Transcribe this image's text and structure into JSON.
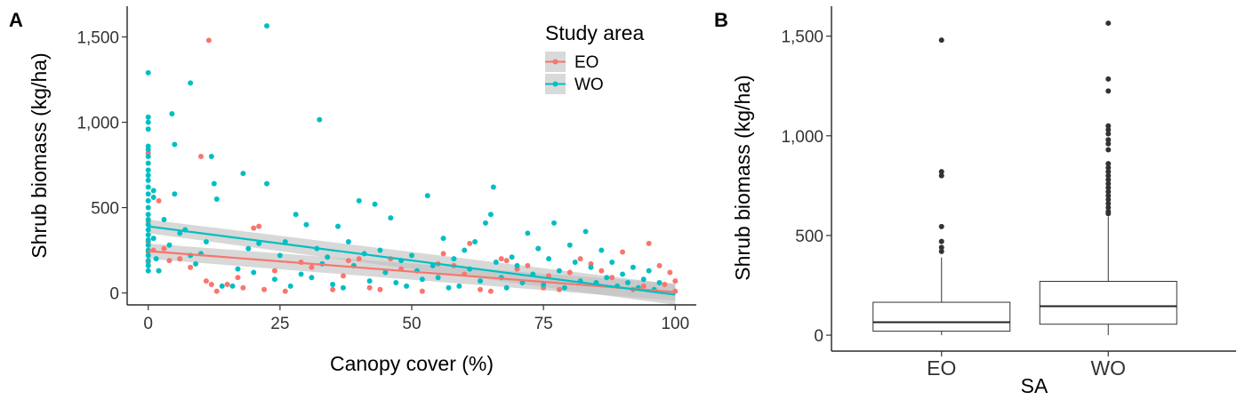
{
  "chart_data": [
    {
      "type": "scatter",
      "panel_label": "A",
      "xlabel": "Canopy cover (%)",
      "ylabel": "Shrub biomass (kg/ha)",
      "xlim": [
        -4,
        104
      ],
      "ylim": [
        -70,
        1680
      ],
      "xticks": [
        0,
        25,
        50,
        75,
        100
      ],
      "xtick_labels": [
        "0",
        "25",
        "50",
        "75",
        "100"
      ],
      "yticks": [
        0,
        500,
        1000,
        1500
      ],
      "ytick_labels": [
        "0",
        "500",
        "1,000",
        "1,500"
      ],
      "grid": false,
      "legend": {
        "title": "Study area",
        "position": "top-right"
      },
      "series": [
        {
          "name": "EO",
          "color": "#F8766D",
          "fit": {
            "x": [
              0,
              100
            ],
            "y": [
              245,
              5
            ],
            "band_halfwidth": [
              45,
              50
            ]
          },
          "points": [
            [
              0,
              240
            ],
            [
              0,
              180
            ],
            [
              0,
              300
            ],
            [
              0,
              420
            ],
            [
              0,
              820
            ],
            [
              1,
              250
            ],
            [
              2,
              130
            ],
            [
              2,
              540
            ],
            [
              3,
              260
            ],
            [
              4,
              190
            ],
            [
              6,
              200
            ],
            [
              8,
              150
            ],
            [
              10,
              800
            ],
            [
              11,
              70
            ],
            [
              11.5,
              1480
            ],
            [
              12,
              50
            ],
            [
              13,
              10
            ],
            [
              15,
              50
            ],
            [
              17,
              90
            ],
            [
              18,
              30
            ],
            [
              20,
              380
            ],
            [
              21,
              390
            ],
            [
              22,
              20
            ],
            [
              24,
              130
            ],
            [
              26,
              10
            ],
            [
              29,
              180
            ],
            [
              31,
              150
            ],
            [
              35,
              20
            ],
            [
              37,
              100
            ],
            [
              38,
              190
            ],
            [
              40,
              200
            ],
            [
              42,
              30
            ],
            [
              44,
              20
            ],
            [
              46,
              200
            ],
            [
              48,
              140
            ],
            [
              52,
              10
            ],
            [
              55,
              170
            ],
            [
              56,
              230
            ],
            [
              58,
              160
            ],
            [
              60,
              110
            ],
            [
              61,
              290
            ],
            [
              63,
              20
            ],
            [
              65,
              10
            ],
            [
              67,
              200
            ],
            [
              68,
              190
            ],
            [
              70,
              140
            ],
            [
              72,
              160
            ],
            [
              74,
              260
            ],
            [
              75,
              30
            ],
            [
              76,
              100
            ],
            [
              78,
              20
            ],
            [
              80,
              120
            ],
            [
              82,
              200
            ],
            [
              84,
              170
            ],
            [
              86,
              130
            ],
            [
              88,
              90
            ],
            [
              90,
              240
            ],
            [
              92,
              20
            ],
            [
              94,
              40
            ],
            [
              95,
              290
            ],
            [
              97,
              160
            ],
            [
              98,
              50
            ],
            [
              99,
              120
            ],
            [
              100,
              10
            ],
            [
              100,
              70
            ]
          ]
        },
        {
          "name": "WO",
          "color": "#00BFC4",
          "fit": {
            "x": [
              0,
              100
            ],
            "y": [
              390,
              -10
            ],
            "band_halfwidth": [
              40,
              60
            ]
          },
          "points": [
            [
              0,
              1290
            ],
            [
              0,
              1030
            ],
            [
              0,
              1000
            ],
            [
              0,
              960
            ],
            [
              0,
              860
            ],
            [
              0,
              840
            ],
            [
              0,
              800
            ],
            [
              0,
              760
            ],
            [
              0,
              720
            ],
            [
              0,
              690
            ],
            [
              0,
              660
            ],
            [
              0,
              620
            ],
            [
              0,
              580
            ],
            [
              0,
              540
            ],
            [
              0,
              500
            ],
            [
              0,
              460
            ],
            [
              0,
              430
            ],
            [
              0,
              400
            ],
            [
              0,
              370
            ],
            [
              0,
              340
            ],
            [
              0,
              310
            ],
            [
              0,
              280
            ],
            [
              0,
              250
            ],
            [
              0,
              220
            ],
            [
              0,
              190
            ],
            [
              0,
              160
            ],
            [
              0,
              130
            ],
            [
              1,
              600
            ],
            [
              1,
              560
            ],
            [
              1,
              320
            ],
            [
              1.5,
              200
            ],
            [
              2,
              130
            ],
            [
              3,
              430
            ],
            [
              4,
              280
            ],
            [
              4.5,
              1050
            ],
            [
              5,
              870
            ],
            [
              5,
              580
            ],
            [
              6,
              350
            ],
            [
              7,
              370
            ],
            [
              8,
              1230
            ],
            [
              8,
              220
            ],
            [
              9,
              170
            ],
            [
              10,
              230
            ],
            [
              11,
              300
            ],
            [
              12,
              800
            ],
            [
              12.5,
              640
            ],
            [
              13,
              550
            ],
            [
              14,
              40
            ],
            [
              16,
              40
            ],
            [
              17,
              140
            ],
            [
              18,
              700
            ],
            [
              19,
              260
            ],
            [
              20,
              120
            ],
            [
              21,
              290
            ],
            [
              22.5,
              640
            ],
            [
              22.5,
              1565
            ],
            [
              24,
              80
            ],
            [
              25,
              220
            ],
            [
              26,
              300
            ],
            [
              27,
              40
            ],
            [
              28,
              460
            ],
            [
              29,
              110
            ],
            [
              30,
              400
            ],
            [
              31,
              90
            ],
            [
              32,
              260
            ],
            [
              32.5,
              1015
            ],
            [
              33,
              170
            ],
            [
              34,
              210
            ],
            [
              35,
              50
            ],
            [
              36,
              390
            ],
            [
              37,
              30
            ],
            [
              38,
              300
            ],
            [
              39,
              160
            ],
            [
              40,
              540
            ],
            [
              41,
              230
            ],
            [
              42,
              70
            ],
            [
              43,
              520
            ],
            [
              44,
              250
            ],
            [
              45,
              120
            ],
            [
              46,
              440
            ],
            [
              47,
              60
            ],
            [
              48,
              190
            ],
            [
              49,
              40
            ],
            [
              50,
              220
            ],
            [
              51,
              130
            ],
            [
              52,
              80
            ],
            [
              53,
              570
            ],
            [
              54,
              160
            ],
            [
              55,
              90
            ],
            [
              56,
              320
            ],
            [
              57,
              30
            ],
            [
              58,
              200
            ],
            [
              59,
              40
            ],
            [
              60,
              250
            ],
            [
              61,
              140
            ],
            [
              62,
              300
            ],
            [
              63,
              70
            ],
            [
              64,
              410
            ],
            [
              65,
              460
            ],
            [
              65.5,
              620
            ],
            [
              66,
              180
            ],
            [
              67,
              90
            ],
            [
              68,
              30
            ],
            [
              69,
              210
            ],
            [
              70,
              160
            ],
            [
              71,
              60
            ],
            [
              72,
              350
            ],
            [
              73,
              110
            ],
            [
              74,
              260
            ],
            [
              75,
              50
            ],
            [
              76,
              200
            ],
            [
              77,
              410
            ],
            [
              78,
              130
            ],
            [
              79,
              30
            ],
            [
              80,
              280
            ],
            [
              81,
              180
            ],
            [
              82,
              70
            ],
            [
              83,
              360
            ],
            [
              84,
              150
            ],
            [
              85,
              60
            ],
            [
              86,
              250
            ],
            [
              87,
              90
            ],
            [
              88,
              180
            ],
            [
              89,
              40
            ],
            [
              90,
              110
            ],
            [
              91,
              60
            ],
            [
              92,
              150
            ],
            [
              93,
              30
            ],
            [
              94,
              80
            ],
            [
              95,
              130
            ],
            [
              96,
              20
            ],
            [
              97,
              60
            ]
          ]
        }
      ]
    },
    {
      "type": "box",
      "panel_label": "B",
      "xlabel": "SA",
      "ylabel": "Shrub biomass (kg/ha)",
      "ylim": [
        -80,
        1650
      ],
      "yticks": [
        0,
        500,
        1000,
        1500
      ],
      "ytick_labels": [
        "0",
        "500",
        "1,000",
        "1,500"
      ],
      "categories": [
        "EO",
        "WO"
      ],
      "grid": false,
      "boxes": [
        {
          "name": "EO",
          "min": 0,
          "q1": 20,
          "median": 65,
          "q3": 165,
          "max": 390,
          "outliers": [
            420,
            440,
            470,
            545,
            800,
            820,
            1480
          ]
        },
        {
          "name": "WO",
          "min": 0,
          "q1": 55,
          "median": 145,
          "q3": 270,
          "max": 595,
          "outliers": [
            610,
            620,
            640,
            660,
            680,
            700,
            720,
            740,
            760,
            780,
            800,
            820,
            840,
            860,
            930,
            960,
            980,
            1010,
            1030,
            1050,
            1225,
            1285,
            1565
          ]
        }
      ]
    }
  ],
  "legend_bg": "#D9D9D9",
  "fit_band_color": "#BEBEBE",
  "outlier_color": "#333333"
}
